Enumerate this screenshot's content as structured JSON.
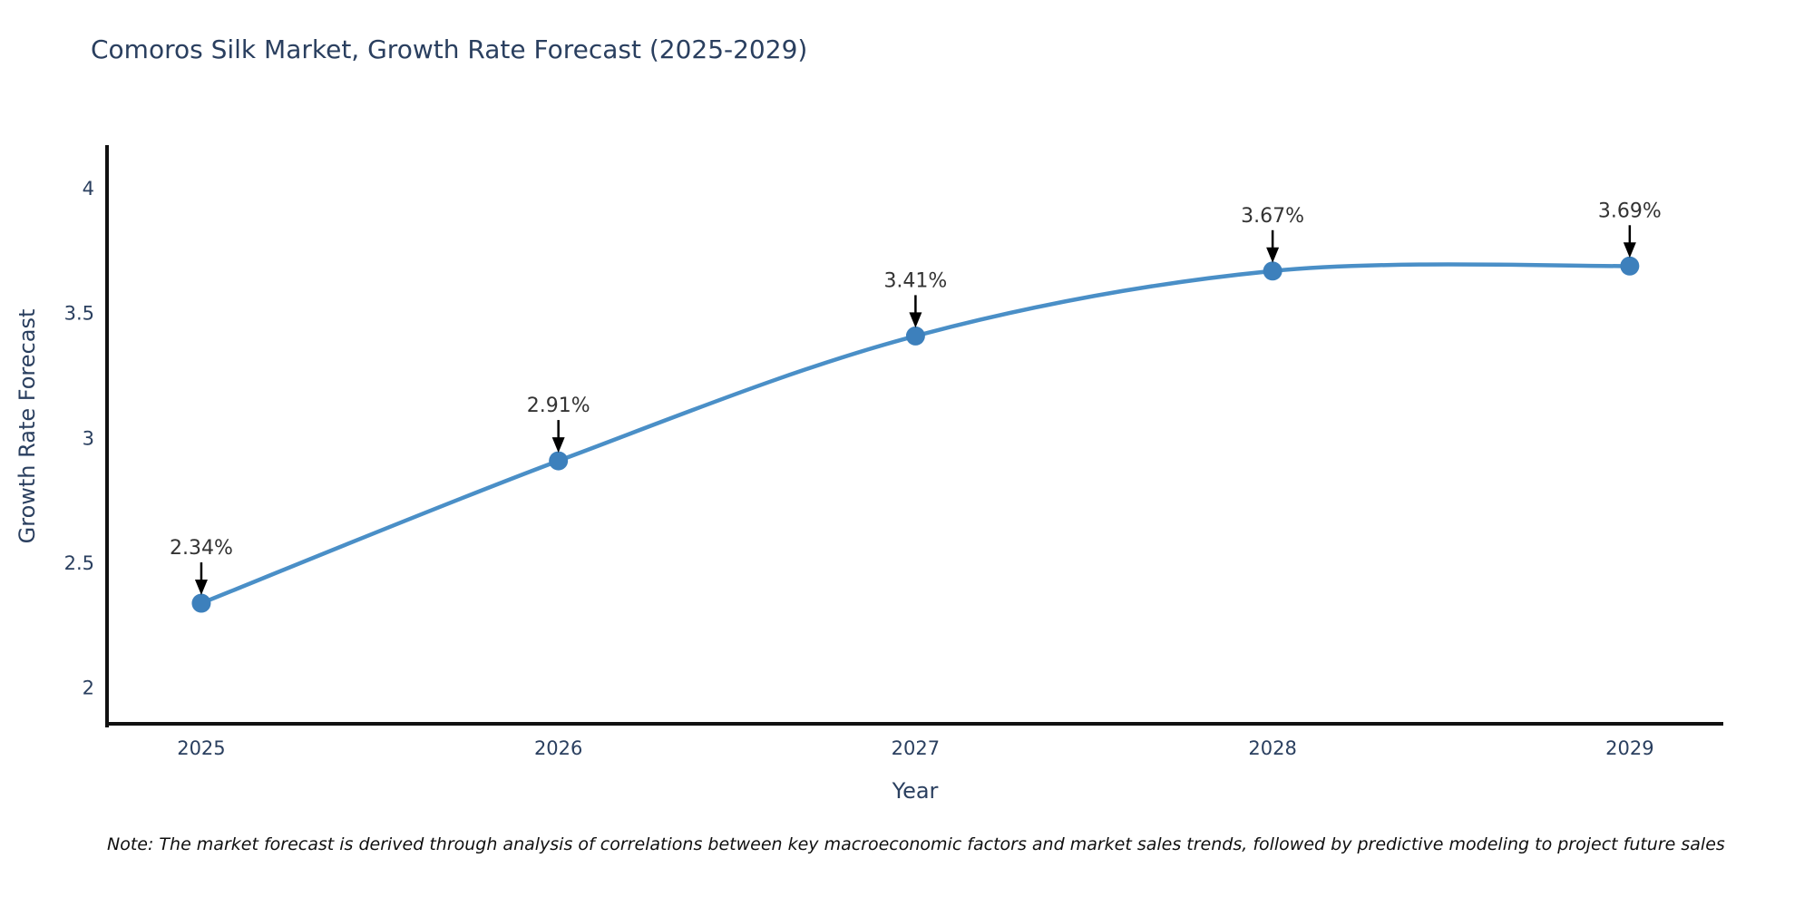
{
  "chart_data": {
    "type": "line",
    "title": "Comoros Silk Market, Growth Rate Forecast (2025-2029)",
    "xlabel": "Year",
    "ylabel": "Growth Rate Forecast",
    "x": [
      2025,
      2026,
      2027,
      2028,
      2029
    ],
    "values": [
      2.34,
      2.91,
      3.41,
      3.67,
      3.69
    ],
    "point_labels": [
      "2.34%",
      "2.91%",
      "3.41%",
      "3.67%",
      "3.69%"
    ],
    "xtick_labels": [
      "2025",
      "2026",
      "2027",
      "2028",
      "2029"
    ],
    "ytick_values": [
      2,
      2.5,
      3,
      3.5,
      4
    ],
    "ytick_labels": [
      "2",
      "2.5",
      "3",
      "3.5",
      "4"
    ],
    "xlim": [
      2024.736,
      2029.262
    ],
    "ylim": [
      1.85,
      4.174
    ],
    "grid": false,
    "legend_position": "none",
    "line_shape": "spline",
    "colors": {
      "line": "#4a8fc7",
      "marker": "#3d80bc",
      "axis": "#111111",
      "tick_text": "#2a3f5f",
      "title_text": "#2a3f5f",
      "annotation_text": "#333333",
      "annotation_arrow": "#000000",
      "background": "#ffffff"
    }
  },
  "note": "Note: The market forecast is derived through analysis of correlations between key macroeconomic factors and market sales trends, followed by predictive modeling to project future sales"
}
